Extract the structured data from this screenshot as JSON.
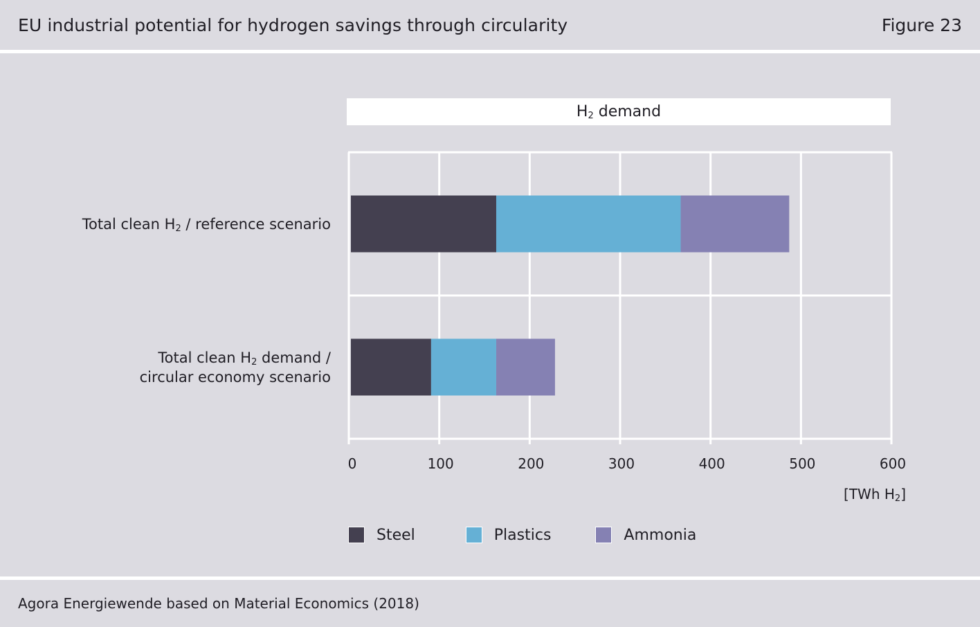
{
  "header": {
    "title": "EU industrial potential for hydrogen savings through circularity",
    "figure_label": "Figure 23"
  },
  "footer": {
    "source": "Agora Energiewende based on Material Economics (2018)"
  },
  "colors": {
    "background": "#dcdbe1",
    "steel": "#444050",
    "plastics": "#65b0d5",
    "ammonia": "#8581b3",
    "grid": "#ffffff"
  },
  "chart_data": {
    "type": "bar",
    "orientation": "horizontal",
    "stacked": true,
    "panel_title": {
      "main": "H",
      "sub": "2",
      "rest": " demand"
    },
    "categories": [
      {
        "lines": [
          {
            "pre": "Total clean H",
            "sub": "2",
            "post": " / reference scenario"
          }
        ]
      },
      {
        "lines": [
          {
            "pre": "Total clean H",
            "sub": "2",
            "post": " demand /"
          },
          {
            "pre": "circular economy scenario",
            "sub": "",
            "post": ""
          }
        ]
      }
    ],
    "series": [
      {
        "name": "Steel",
        "values": [
          163,
          91
        ]
      },
      {
        "name": "Plastics",
        "values": [
          204,
          72
        ]
      },
      {
        "name": "Ammonia",
        "values": [
          120,
          65
        ]
      }
    ],
    "x_ticks": [
      0,
      100,
      200,
      300,
      400,
      500,
      600
    ],
    "xlim": [
      0,
      600
    ],
    "unit": {
      "pre": "[TWh H",
      "sub": "2",
      "post": "]"
    },
    "grid": true,
    "legend_position": "bottom-left"
  }
}
